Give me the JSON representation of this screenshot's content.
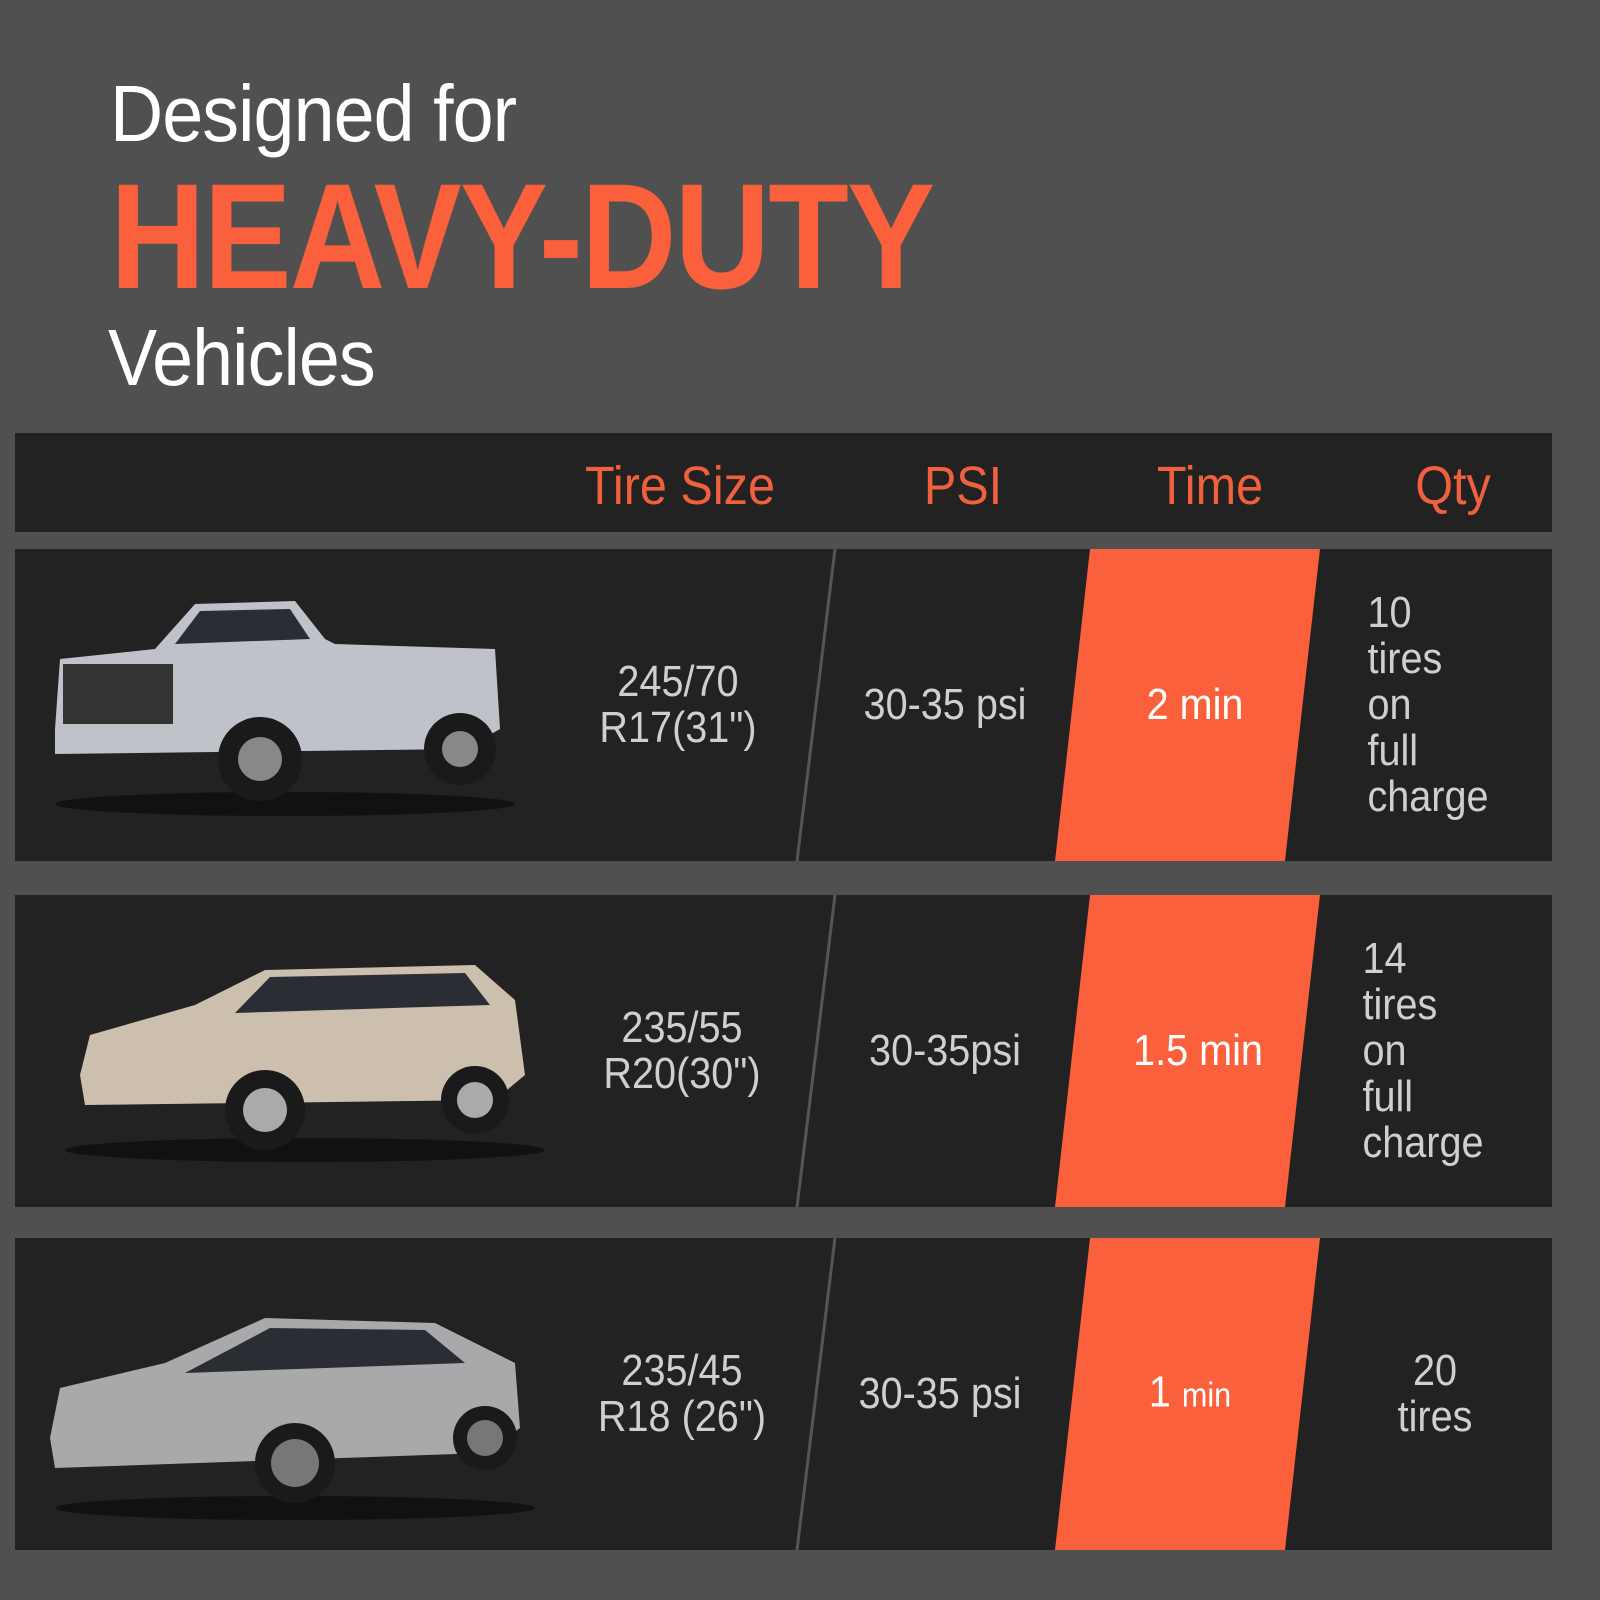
{
  "title": {
    "line1": "Designed for",
    "line2": "HEAVY-DUTY",
    "line3": "Vehicles"
  },
  "header": {
    "col1": "Tire Size",
    "col2": "PSI",
    "col3": "Time",
    "col4": "Qty"
  },
  "colors": {
    "background": "#505050",
    "panel": "#222222",
    "accent": "#f9603b"
  },
  "rows": [
    {
      "vehicle": "pickup-truck",
      "tire_size": "245/70\nR17(31\")",
      "psi": "30-35 psi",
      "time": "2 min",
      "qty": "10 tires on\nfull charge"
    },
    {
      "vehicle": "suv",
      "tire_size": "235/55\nR20(30\")",
      "psi": "30-35psi",
      "time": "1.5 min",
      "qty": "14 tires on\nfull charge"
    },
    {
      "vehicle": "sedan",
      "tire_size": "235/45\nR18 (26\")",
      "psi": "30-35 psi",
      "time_value": "1",
      "time_unit": "min",
      "qty": "20 tires"
    }
  ]
}
